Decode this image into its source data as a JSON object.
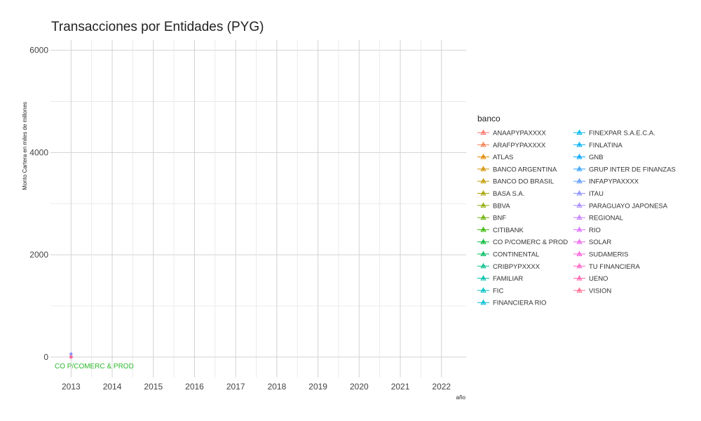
{
  "chart_data": {
    "type": "line",
    "title": "Transacciones por Entidades (PYG)",
    "xlabel": "año",
    "ylabel": "Monto Cartera en miles de millones",
    "x_ticks": [
      2013,
      2014,
      2015,
      2016,
      2017,
      2018,
      2019,
      2020,
      2021,
      2022
    ],
    "y_ticks": [
      0,
      2000,
      4000,
      6000
    ],
    "xlim": [
      2012.5,
      2022.6
    ],
    "ylim": [
      -400,
      6200
    ],
    "grid": true,
    "legend": {
      "title": "banco",
      "placement": "right",
      "columns": 2
    },
    "annotation": {
      "text": "CO P/COMERC & PROD",
      "x": 2013,
      "y": 0,
      "color": "#2db82d"
    },
    "series": [
      {
        "name": "ANAAPYPAXXXX",
        "color": "#F8766D",
        "x": [
          2013
        ],
        "y": [
          0
        ]
      },
      {
        "name": "ARAFPYPAXXXX",
        "color": "#F07F4F",
        "x": [
          2013
        ],
        "y": [
          0
        ]
      },
      {
        "name": "ATLAS",
        "color": "#E38900",
        "x": [
          2013
        ],
        "y": [
          0
        ]
      },
      {
        "name": "BANCO ARGENTINA",
        "color": "#D39200",
        "x": [
          2013
        ],
        "y": [
          0
        ]
      },
      {
        "name": "BANCO DO BRASIL",
        "color": "#C09B00",
        "x": [
          2013
        ],
        "y": [
          0
        ]
      },
      {
        "name": "BASA S.A.",
        "color": "#A9A400",
        "x": [
          2013
        ],
        "y": [
          0
        ]
      },
      {
        "name": "BBVA",
        "color": "#8FAA00",
        "x": [
          2013
        ],
        "y": [
          0
        ]
      },
      {
        "name": "BNF",
        "color": "#6BB100",
        "x": [
          2013
        ],
        "y": [
          0
        ]
      },
      {
        "name": "CITIBANK",
        "color": "#39B600",
        "x": [
          2013
        ],
        "y": [
          0
        ]
      },
      {
        "name": "CO P/COMERC & PROD",
        "color": "#00BA38",
        "x": [
          2013
        ],
        "y": [
          0
        ]
      },
      {
        "name": "CONTINENTAL",
        "color": "#00BD5F",
        "x": [
          2013
        ],
        "y": [
          0
        ]
      },
      {
        "name": "CRIBPYPXXXX",
        "color": "#00C08B",
        "x": [
          2013
        ],
        "y": [
          0
        ]
      },
      {
        "name": "FAMILIAR",
        "color": "#00C0AA",
        "x": [
          2013
        ],
        "y": [
          0
        ]
      },
      {
        "name": "FIC",
        "color": "#00BFC4",
        "x": [
          2013
        ],
        "y": [
          0
        ]
      },
      {
        "name": "FINANCIERA RIO",
        "color": "#00BCD8",
        "x": [
          2013
        ],
        "y": [
          0
        ]
      },
      {
        "name": "FINEXPAR S.A.E.C.A.",
        "color": "#00B7E8",
        "x": [
          2013
        ],
        "y": [
          0
        ]
      },
      {
        "name": "FINLATINA",
        "color": "#00B0F6",
        "x": [
          2013
        ],
        "y": [
          0
        ]
      },
      {
        "name": "GNB",
        "color": "#00A5FF",
        "x": [
          2013
        ],
        "y": [
          0
        ]
      },
      {
        "name": "GRUP INTER DE FINANZAS",
        "color": "#35A2FF",
        "x": [
          2013
        ],
        "y": [
          0
        ]
      },
      {
        "name": "INFAPYPAXXXX",
        "color": "#619CFF",
        "x": [
          2013
        ],
        "y": [
          0
        ]
      },
      {
        "name": "ITAU",
        "color": "#8B93FF",
        "x": [
          2013
        ],
        "y": [
          60
        ]
      },
      {
        "name": "PARAGUAYO JAPONESA",
        "color": "#AA8AFF",
        "x": [
          2013
        ],
        "y": [
          0
        ]
      },
      {
        "name": "REGIONAL",
        "color": "#C77CFF",
        "x": [
          2013
        ],
        "y": [
          0
        ]
      },
      {
        "name": "RIO",
        "color": "#DC71FA",
        "x": [
          2013
        ],
        "y": [
          0
        ]
      },
      {
        "name": "SOLAR",
        "color": "#EE67EC",
        "x": [
          2013
        ],
        "y": [
          0
        ]
      },
      {
        "name": "SUDAMERIS",
        "color": "#F962DD",
        "x": [
          2013
        ],
        "y": [
          0
        ]
      },
      {
        "name": "TU FINANCIERA",
        "color": "#FF61C9",
        "x": [
          2013
        ],
        "y": [
          0
        ]
      },
      {
        "name": "UENO",
        "color": "#FF64B0",
        "x": [
          2013
        ],
        "y": [
          0
        ]
      },
      {
        "name": "VISION",
        "color": "#FF6C91",
        "x": [
          2013
        ],
        "y": [
          0
        ]
      }
    ]
  }
}
